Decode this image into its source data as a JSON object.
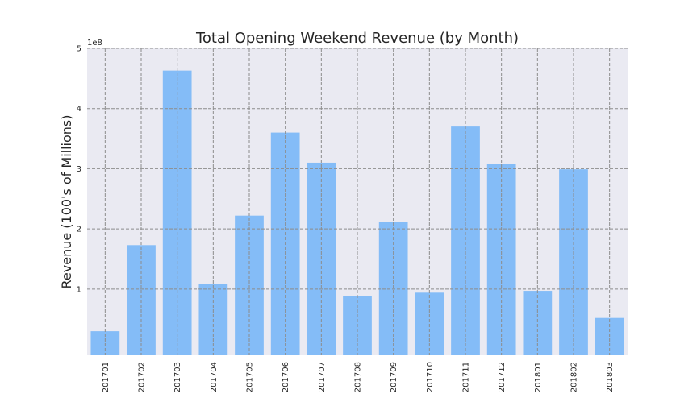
{
  "chart_data": {
    "type": "bar",
    "title": "Total Opening Weekend Revenue (by Month)",
    "xlabel": "",
    "ylabel": "Revenue (100's of Millions)",
    "y_offset_label": "1e8",
    "categories": [
      "201701",
      "201702",
      "201703",
      "201704",
      "201705",
      "201706",
      "201707",
      "201708",
      "201709",
      "201710",
      "201711",
      "201712",
      "201801",
      "201802",
      "201803"
    ],
    "values": [
      30000000,
      173000000,
      463000000,
      108000000,
      222000000,
      360000000,
      310000000,
      88000000,
      212000000,
      94000000,
      370000000,
      308000000,
      97000000,
      299000000,
      52000000
    ],
    "ylim": [
      -10000000,
      500000000
    ],
    "yticks": [
      100000000,
      200000000,
      300000000,
      400000000,
      500000000
    ],
    "ytick_labels": [
      "1",
      "2",
      "3",
      "4",
      "5"
    ],
    "grid": true,
    "colors": {
      "bar": "#84bcf7",
      "background": "#eaeaf2",
      "grid": "#8c8c8c"
    }
  }
}
